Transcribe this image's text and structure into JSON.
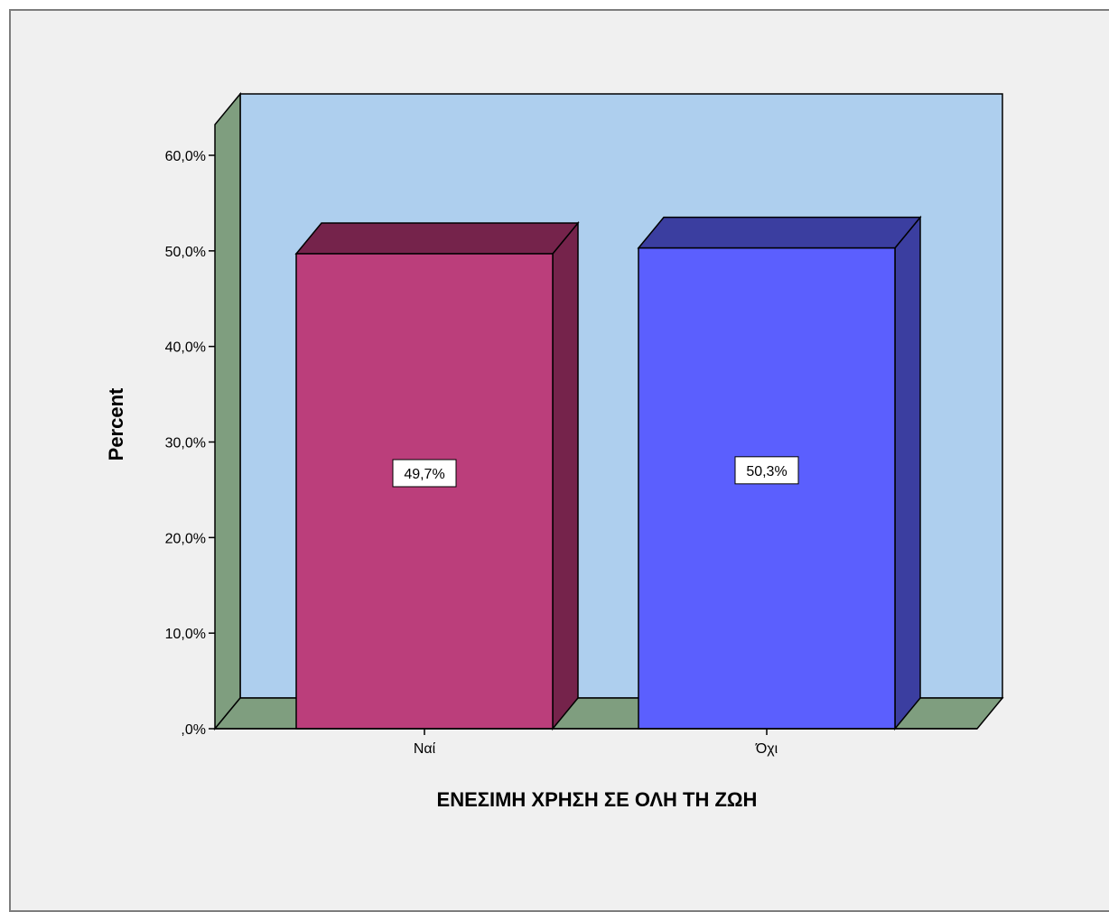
{
  "chart_data": {
    "type": "bar",
    "categories": [
      "Ναί",
      "Όχι"
    ],
    "values": [
      49.7,
      50.3
    ],
    "data_labels": [
      "49,7%",
      "50,3%"
    ],
    "xlabel": "ΕΝΕΣΙΜΗ ΧΡΗΣΗ ΣΕ ΟΛΗ ΤΗ ΖΩΗ",
    "ylabel": "Percent",
    "ylim": [
      0,
      60
    ],
    "yticks": [
      0,
      10,
      20,
      30,
      40,
      50,
      60
    ],
    "ytick_labels": [
      ",0%",
      "10,0%",
      "20,0%",
      "30,0%",
      "40,0%",
      "50,0%",
      "60,0%"
    ],
    "three_d": true,
    "grid": false,
    "colors": {
      "back_wall": "#aecfee",
      "side_wall": "#7f9e7f",
      "floor": "#7f9e7f",
      "bars": [
        "#bb3e7b",
        "#5b5ffe"
      ],
      "bar_tops": [
        "#75234b",
        "#3b3ea0"
      ],
      "bar_sides": [
        "#75234b",
        "#3b3ea0"
      ],
      "background": "#f0f0f0"
    }
  }
}
